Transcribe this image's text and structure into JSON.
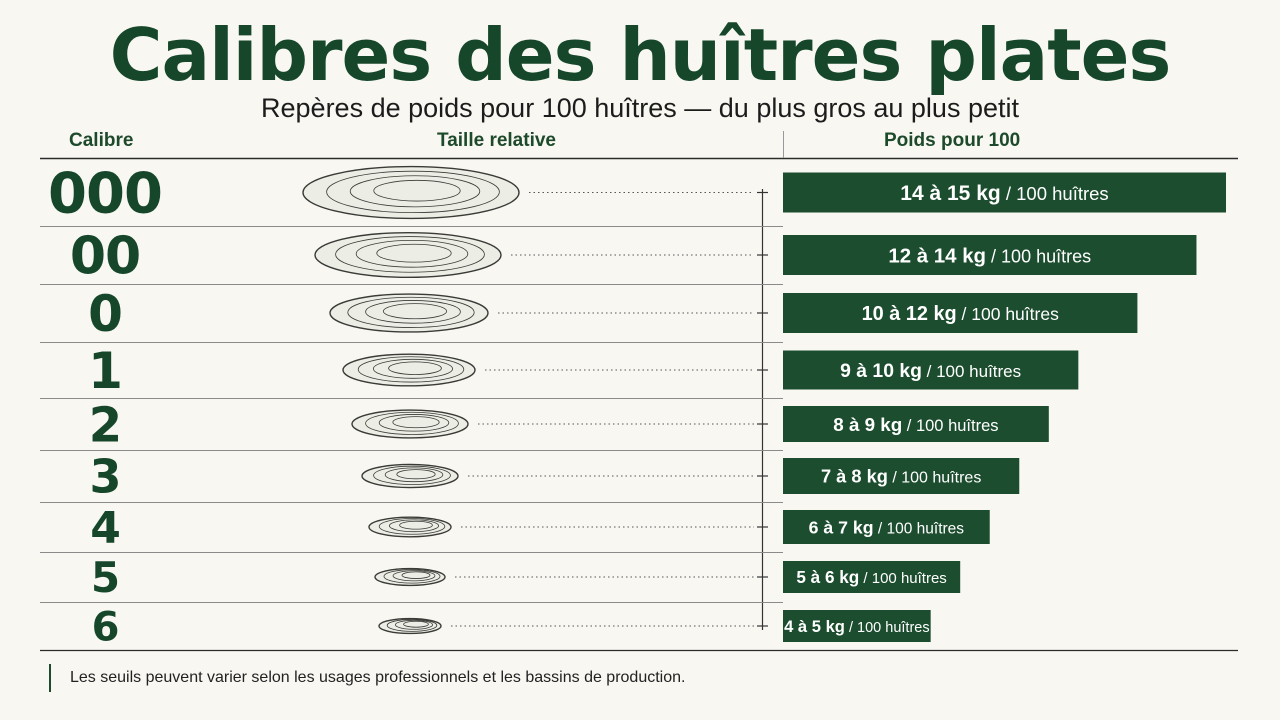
{
  "header": {
    "title": "Calibres des huîtres plates",
    "subtitle": "Repères de poids pour 100 huîtres — du plus gros au plus petit"
  },
  "columns": {
    "calibre": "Calibre",
    "taille": "Taille relative",
    "poids": "Poids pour 100"
  },
  "colors": {
    "bar": "#1b4d2e",
    "calibre_text": "#17472a",
    "rule": "#2b2b2b",
    "bar_text": "#ffffff"
  },
  "icons": {
    "oyster": "oyster-illustration"
  },
  "footnote": "Les seuils peuvent varier selon les usages professionnels et les bassins de production.",
  "chart_data": {
    "type": "bar",
    "orientation": "horizontal",
    "unit_suffix": "/ 100 huîtres",
    "categories": [
      "000",
      "00",
      "0",
      "1",
      "2",
      "3",
      "4",
      "5",
      "6"
    ],
    "series": [
      {
        "min": [
          14,
          12,
          10,
          9,
          8,
          7,
          6,
          5,
          4
        ],
        "max": [
          15,
          14,
          12,
          10,
          9,
          8,
          7,
          6,
          5
        ]
      }
    ],
    "labels": [
      "14 à 15 kg",
      "12 à 14 kg",
      "10 à 12 kg",
      "9 à 10 kg",
      "8 à 9 kg",
      "7 à 8 kg",
      "6 à 7 kg",
      "5 à 6 kg",
      "4 à 5 kg"
    ],
    "xlim": [
      0,
      15
    ],
    "grid": false
  }
}
